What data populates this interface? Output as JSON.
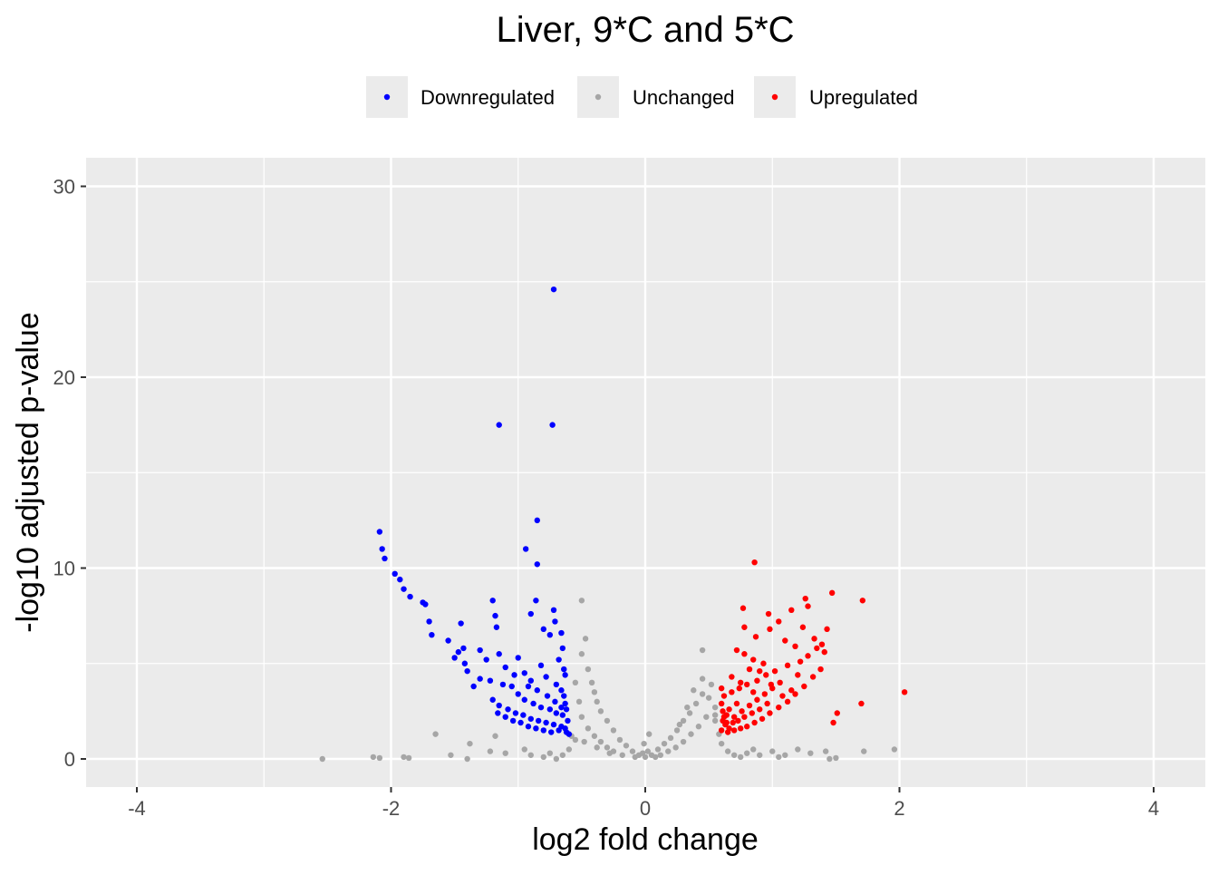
{
  "chart_data": {
    "type": "scatter",
    "title": "Liver, 9*C and 5*C",
    "xlabel": "log2 fold change",
    "ylabel": "-log10 adjusted p-value",
    "xlim": [
      -4.4,
      4.4
    ],
    "ylim": [
      -1.5,
      31.5
    ],
    "x_ticks": [
      -4,
      -2,
      0,
      2,
      4
    ],
    "x_tick_labels": [
      "-4",
      "-2",
      "0",
      "2",
      "4"
    ],
    "y_ticks": [
      0,
      10,
      20,
      30
    ],
    "y_tick_labels": [
      "0",
      "10",
      "20",
      "30"
    ],
    "grid": true,
    "legend_position": "top",
    "background_color": "#ebebeb",
    "series": [
      {
        "name": "Downregulated",
        "color": "#0000ff",
        "points": [
          [
            -0.72,
            24.6
          ],
          [
            -1.15,
            17.5
          ],
          [
            -0.73,
            17.5
          ],
          [
            -2.09,
            11.9
          ],
          [
            -2.07,
            11.0
          ],
          [
            -2.05,
            10.5
          ],
          [
            -1.97,
            9.7
          ],
          [
            -1.93,
            9.4
          ],
          [
            -1.9,
            8.9
          ],
          [
            -1.85,
            8.5
          ],
          [
            -0.85,
            12.5
          ],
          [
            -0.94,
            11.0
          ],
          [
            -0.85,
            10.2
          ],
          [
            -1.75,
            8.2
          ],
          [
            -1.73,
            8.1
          ],
          [
            -1.7,
            7.2
          ],
          [
            -1.68,
            6.5
          ],
          [
            -1.45,
            7.1
          ],
          [
            -1.55,
            6.2
          ],
          [
            -1.43,
            5.8
          ],
          [
            -1.47,
            5.6
          ],
          [
            -1.5,
            5.3
          ],
          [
            -1.42,
            5.0
          ],
          [
            -1.4,
            4.6
          ],
          [
            -1.2,
            8.3
          ],
          [
            -1.18,
            7.5
          ],
          [
            -1.17,
            6.9
          ],
          [
            -0.9,
            7.6
          ],
          [
            -0.86,
            8.3
          ],
          [
            -0.72,
            7.8
          ],
          [
            -0.71,
            7.2
          ],
          [
            -0.66,
            6.6
          ],
          [
            -0.8,
            6.8
          ],
          [
            -0.75,
            6.5
          ],
          [
            -0.65,
            5.8
          ],
          [
            -0.68,
            5.2
          ],
          [
            -1.3,
            5.7
          ],
          [
            -1.25,
            5.2
          ],
          [
            -1.15,
            5.5
          ],
          [
            -1.1,
            4.8
          ],
          [
            -1.0,
            5.3
          ],
          [
            -0.95,
            4.5
          ],
          [
            -0.9,
            4.1
          ],
          [
            -0.82,
            4.9
          ],
          [
            -0.78,
            4.3
          ],
          [
            -0.7,
            3.9
          ],
          [
            -0.66,
            3.6
          ],
          [
            -1.22,
            4.1
          ],
          [
            -1.12,
            3.9
          ],
          [
            -1.05,
            3.8
          ],
          [
            -1.3,
            4.2
          ],
          [
            -1.35,
            3.8
          ],
          [
            -1.2,
            3.1
          ],
          [
            -1.15,
            2.8
          ],
          [
            -1.08,
            2.6
          ],
          [
            -1.02,
            2.4
          ],
          [
            -0.96,
            2.3
          ],
          [
            -0.9,
            2.1
          ],
          [
            -0.84,
            2.0
          ],
          [
            -0.78,
            1.9
          ],
          [
            -0.72,
            1.8
          ],
          [
            -0.66,
            1.7
          ],
          [
            -0.63,
            1.6
          ],
          [
            -1.0,
            3.4
          ],
          [
            -0.95,
            3.1
          ],
          [
            -0.88,
            2.9
          ],
          [
            -0.82,
            2.7
          ],
          [
            -0.75,
            2.6
          ],
          [
            -0.7,
            2.4
          ],
          [
            -0.65,
            2.3
          ],
          [
            -0.63,
            2.9
          ],
          [
            -0.64,
            3.3
          ],
          [
            -0.63,
            4.4
          ],
          [
            -0.64,
            4.7
          ],
          [
            -0.62,
            1.4
          ],
          [
            -0.68,
            1.5
          ],
          [
            -0.74,
            1.4
          ],
          [
            -0.8,
            1.5
          ],
          [
            -0.86,
            1.6
          ],
          [
            -0.92,
            1.7
          ],
          [
            -0.98,
            1.9
          ],
          [
            -1.04,
            2.0
          ],
          [
            -1.1,
            2.2
          ],
          [
            -1.16,
            2.4
          ],
          [
            -0.6,
            1.3
          ],
          [
            -0.61,
            2.0
          ],
          [
            -0.62,
            2.6
          ],
          [
            -0.85,
            3.6
          ],
          [
            -0.92,
            3.8
          ],
          [
            -1.03,
            4.4
          ],
          [
            -0.77,
            3.3
          ],
          [
            -0.71,
            3.0
          ],
          [
            -0.66,
            2.7
          ]
        ]
      },
      {
        "name": "Unchanged",
        "color": "#a6a6a6",
        "points": [
          [
            -2.54,
            0.0
          ],
          [
            -2.14,
            0.1
          ],
          [
            -2.09,
            0.05
          ],
          [
            -1.9,
            0.1
          ],
          [
            -1.86,
            0.05
          ],
          [
            -1.65,
            1.3
          ],
          [
            -1.53,
            0.2
          ],
          [
            -1.4,
            0.0
          ],
          [
            -1.38,
            0.8
          ],
          [
            -1.22,
            0.4
          ],
          [
            -1.18,
            1.2
          ],
          [
            -1.1,
            0.3
          ],
          [
            -0.95,
            0.5
          ],
          [
            -0.9,
            0.2
          ],
          [
            -0.8,
            0.1
          ],
          [
            -0.5,
            8.3
          ],
          [
            -0.47,
            6.3
          ],
          [
            -0.5,
            5.5
          ],
          [
            -0.45,
            4.7
          ],
          [
            -0.42,
            4.0
          ],
          [
            -0.4,
            3.5
          ],
          [
            -0.38,
            3.0
          ],
          [
            -0.35,
            2.5
          ],
          [
            -0.3,
            2.0
          ],
          [
            -0.25,
            1.5
          ],
          [
            -0.2,
            1.0
          ],
          [
            -0.15,
            0.7
          ],
          [
            -0.1,
            0.4
          ],
          [
            -0.05,
            0.2
          ],
          [
            0.0,
            0.1
          ],
          [
            -0.55,
            4.0
          ],
          [
            -0.52,
            3.0
          ],
          [
            -0.5,
            2.2
          ],
          [
            -0.45,
            1.6
          ],
          [
            -0.4,
            1.2
          ],
          [
            -0.35,
            0.9
          ],
          [
            -0.3,
            0.6
          ],
          [
            -0.25,
            0.4
          ],
          [
            -0.55,
            1.0
          ],
          [
            -0.6,
            0.5
          ],
          [
            -0.65,
            0.2
          ],
          [
            -0.7,
            0.0
          ],
          [
            -0.75,
            0.3
          ],
          [
            -0.58,
            1.2
          ],
          [
            -0.48,
            0.9
          ],
          [
            -0.38,
            0.6
          ],
          [
            -0.28,
            0.3
          ],
          [
            -0.18,
            0.2
          ],
          [
            -0.08,
            0.1
          ],
          [
            -0.02,
            0.3
          ],
          [
            0.02,
            0.4
          ],
          [
            0.05,
            0.2
          ],
          [
            0.1,
            0.5
          ],
          [
            0.15,
            0.8
          ],
          [
            0.2,
            1.1
          ],
          [
            0.25,
            1.5
          ],
          [
            0.3,
            2.0
          ],
          [
            0.35,
            2.4
          ],
          [
            0.4,
            2.9
          ],
          [
            0.45,
            3.4
          ],
          [
            0.5,
            3.2
          ],
          [
            0.55,
            2.7
          ],
          [
            0.48,
            2.2
          ],
          [
            0.42,
            1.7
          ],
          [
            0.36,
            1.3
          ],
          [
            0.3,
            0.9
          ],
          [
            0.24,
            0.6
          ],
          [
            0.18,
            0.4
          ],
          [
            0.12,
            0.2
          ],
          [
            0.08,
            0.1
          ],
          [
            0.45,
            4.2
          ],
          [
            0.52,
            3.9
          ],
          [
            0.55,
            2.0
          ],
          [
            0.58,
            1.3
          ],
          [
            0.6,
            0.8
          ],
          [
            0.65,
            0.4
          ],
          [
            0.7,
            0.2
          ],
          [
            0.75,
            0.1
          ],
          [
            0.8,
            0.3
          ],
          [
            0.85,
            0.5
          ],
          [
            0.9,
            0.2
          ],
          [
            1.0,
            0.4
          ],
          [
            1.05,
            0.1
          ],
          [
            1.1,
            0.2
          ],
          [
            1.2,
            0.5
          ],
          [
            1.3,
            0.3
          ],
          [
            1.45,
            0.0
          ],
          [
            1.5,
            0.05
          ],
          [
            1.42,
            0.4
          ],
          [
            1.72,
            0.4
          ],
          [
            1.96,
            0.5
          ],
          [
            0.45,
            5.7
          ],
          [
            0.38,
            3.6
          ],
          [
            0.33,
            2.7
          ],
          [
            0.27,
            1.8
          ],
          [
            0.55,
            2.3
          ],
          [
            0.03,
            1.3
          ],
          [
            -0.01,
            0.8
          ]
        ]
      },
      {
        "name": "Upregulated",
        "color": "#ff0000",
        "points": [
          [
            0.86,
            10.3
          ],
          [
            1.71,
            8.3
          ],
          [
            1.47,
            8.7
          ],
          [
            1.26,
            8.4
          ],
          [
            1.28,
            8.0
          ],
          [
            1.15,
            7.8
          ],
          [
            0.97,
            7.6
          ],
          [
            1.05,
            7.2
          ],
          [
            1.24,
            6.9
          ],
          [
            1.43,
            6.8
          ],
          [
            0.77,
            7.9
          ],
          [
            0.78,
            6.9
          ],
          [
            0.87,
            6.4
          ],
          [
            0.72,
            5.7
          ],
          [
            0.78,
            5.5
          ],
          [
            0.85,
            5.2
          ],
          [
            0.93,
            5.0
          ],
          [
            0.98,
            6.8
          ],
          [
            1.1,
            6.2
          ],
          [
            1.18,
            5.9
          ],
          [
            1.33,
            6.3
          ],
          [
            1.35,
            5.8
          ],
          [
            1.39,
            6.0
          ],
          [
            1.41,
            5.6
          ],
          [
            1.28,
            5.4
          ],
          [
            1.22,
            5.1
          ],
          [
            1.12,
            4.9
          ],
          [
            1.02,
            4.6
          ],
          [
            0.95,
            4.4
          ],
          [
            0.88,
            4.1
          ],
          [
            0.8,
            3.9
          ],
          [
            0.74,
            3.7
          ],
          [
            0.68,
            3.5
          ],
          [
            0.62,
            3.3
          ],
          [
            0.6,
            2.9
          ],
          [
            0.61,
            2.5
          ],
          [
            0.62,
            2.2
          ],
          [
            0.64,
            1.9
          ],
          [
            0.66,
            1.6
          ],
          [
            0.7,
            1.5
          ],
          [
            0.75,
            1.6
          ],
          [
            0.8,
            1.7
          ],
          [
            0.86,
            1.9
          ],
          [
            0.92,
            2.1
          ],
          [
            0.98,
            2.4
          ],
          [
            1.05,
            2.7
          ],
          [
            1.12,
            3.0
          ],
          [
            1.18,
            3.4
          ],
          [
            1.25,
            3.8
          ],
          [
            1.32,
            4.3
          ],
          [
            1.38,
            4.7
          ],
          [
            2.04,
            3.5
          ],
          [
            1.7,
            2.9
          ],
          [
            1.51,
            2.4
          ],
          [
            1.48,
            1.9
          ],
          [
            0.7,
            2.2
          ],
          [
            0.76,
            2.5
          ],
          [
            0.82,
            2.8
          ],
          [
            0.88,
            3.1
          ],
          [
            0.94,
            3.4
          ],
          [
            1.0,
            3.7
          ],
          [
            1.06,
            4.0
          ],
          [
            0.72,
            2.9
          ],
          [
            0.66,
            2.6
          ],
          [
            0.63,
            1.8
          ],
          [
            0.6,
            1.5
          ],
          [
            0.65,
            1.4
          ],
          [
            0.69,
            1.9
          ],
          [
            0.73,
            2.0
          ],
          [
            0.78,
            2.2
          ],
          [
            0.84,
            2.4
          ],
          [
            0.9,
            2.6
          ],
          [
            0.96,
            2.9
          ],
          [
            1.08,
            3.3
          ],
          [
            1.15,
            3.6
          ],
          [
            1.2,
            4.4
          ],
          [
            0.82,
            4.7
          ],
          [
            0.9,
            4.6
          ],
          [
            0.68,
            4.3
          ],
          [
            0.75,
            4.0
          ],
          [
            0.6,
            3.7
          ],
          [
            0.64,
            2.3
          ],
          [
            0.61,
            2.0
          ],
          [
            0.85,
            3.5
          ],
          [
            0.99,
            3.9
          ]
        ]
      }
    ]
  }
}
